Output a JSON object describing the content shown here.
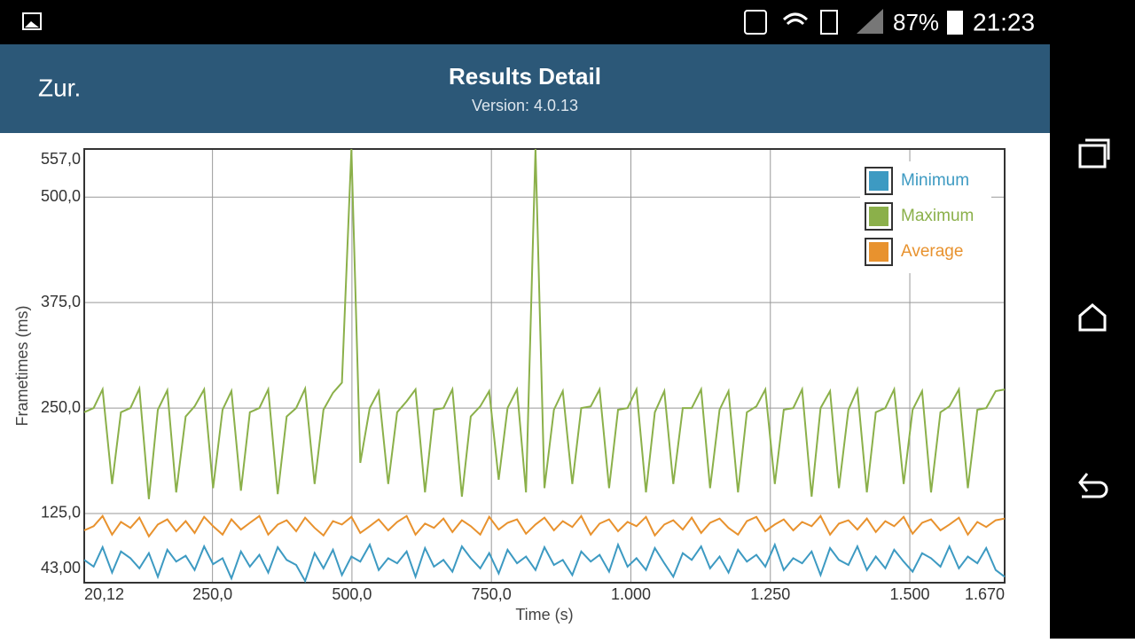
{
  "status_bar": {
    "battery": "87%",
    "time": "21:23"
  },
  "header": {
    "back": "Zur.",
    "title": "Results Detail",
    "subtitle": "Version: 4.0.13"
  },
  "chart_data": {
    "type": "line",
    "x_label": "Time (s)",
    "y_label": "Frametimes (ms)",
    "x": [
      20.12,
      37,
      53,
      70,
      86,
      103,
      119,
      136,
      152,
      169,
      185,
      202,
      218,
      235,
      251,
      268,
      284,
      301,
      317,
      334,
      350,
      367,
      383,
      400,
      416,
      433,
      449,
      466,
      482,
      499,
      515,
      532,
      548,
      565,
      581,
      598,
      614,
      631,
      647,
      664,
      680,
      697,
      713,
      730,
      746,
      763,
      779,
      796,
      812,
      829,
      845,
      862,
      878,
      895,
      911,
      928,
      944,
      961,
      977,
      994,
      1010,
      1027,
      1043,
      1060,
      1076,
      1093,
      1109,
      1126,
      1142,
      1159,
      1175,
      1192,
      1208,
      1225,
      1241,
      1258,
      1274,
      1291,
      1307,
      1324,
      1340,
      1357,
      1373,
      1390,
      1406,
      1423,
      1439,
      1456,
      1472,
      1489,
      1505,
      1522,
      1538,
      1555,
      1571,
      1588,
      1604,
      1621,
      1637,
      1654,
      1670
    ],
    "series": [
      {
        "name": "Minimum",
        "color": "#3d9ac2",
        "values": [
          70,
          62,
          85,
          55,
          80,
          72,
          60,
          78,
          50,
          82,
          68,
          75,
          58,
          86,
          65,
          72,
          48,
          80,
          62,
          76,
          55,
          85,
          70,
          64,
          45,
          78,
          60,
          82,
          52,
          74,
          68,
          88,
          58,
          72,
          66,
          80,
          50,
          84,
          62,
          70,
          56,
          86,
          72,
          60,
          78,
          54,
          82,
          66,
          74,
          58,
          85,
          64,
          70,
          52,
          80,
          68,
          76,
          56,
          88,
          62,
          72,
          58,
          84,
          66,
          50,
          78,
          70,
          86,
          60,
          74,
          55,
          82,
          68,
          76,
          62,
          88,
          58,
          72,
          66,
          80,
          52,
          84,
          70,
          64,
          86,
          58,
          74,
          60,
          82,
          68,
          56,
          78,
          72,
          62,
          86,
          60,
          74,
          66,
          84,
          58,
          50
        ]
      },
      {
        "name": "Maximum",
        "color": "#8bb04a",
        "values": [
          245,
          250,
          272,
          160,
          245,
          250,
          273,
          142,
          248,
          271,
          150,
          240,
          252,
          272,
          155,
          248,
          270,
          152,
          245,
          250,
          272,
          148,
          240,
          250,
          273,
          160,
          248,
          268,
          280,
          557,
          185,
          250,
          270,
          160,
          245,
          258,
          272,
          150,
          248,
          250,
          272,
          145,
          240,
          252,
          270,
          165,
          250,
          272,
          150,
          557,
          155,
          248,
          270,
          160,
          250,
          252,
          272,
          155,
          248,
          250,
          272,
          150,
          245,
          270,
          160,
          250,
          250,
          272,
          155,
          248,
          270,
          150,
          245,
          252,
          272,
          160,
          248,
          250,
          272,
          145,
          250,
          270,
          155,
          248,
          272,
          150,
          245,
          250,
          272,
          160,
          248,
          270,
          150,
          245,
          252,
          272,
          155,
          248,
          250,
          270,
          272
        ]
      },
      {
        "name": "Average",
        "color": "#e8922e",
        "values": [
          105,
          110,
          122,
          100,
          115,
          108,
          120,
          98,
          112,
          118,
          104,
          116,
          102,
          121,
          110,
          100,
          118,
          106,
          114,
          122,
          100,
          112,
          117,
          104,
          120,
          108,
          99,
          116,
          112,
          121,
          102,
          110,
          118,
          105,
          115,
          122,
          100,
          113,
          108,
          119,
          103,
          117,
          110,
          100,
          121,
          106,
          114,
          118,
          101,
          112,
          120,
          105,
          116,
          109,
          122,
          100,
          113,
          118,
          104,
          115,
          110,
          121,
          99,
          112,
          117,
          106,
          120,
          102,
          114,
          119,
          108,
          100,
          116,
          121,
          104,
          112,
          118,
          105,
          115,
          110,
          122,
          100,
          113,
          117,
          106,
          119,
          103,
          116,
          110,
          121,
          101,
          114,
          118,
          105,
          112,
          120,
          100,
          115,
          109,
          117,
          119
        ]
      }
    ],
    "xlim": [
      20.12,
      1670
    ],
    "ylim": [
      43,
      557
    ],
    "xticks": [
      {
        "value": 20.12,
        "label": "20,12"
      },
      {
        "value": 250,
        "label": "250,0"
      },
      {
        "value": 500,
        "label": "500,0"
      },
      {
        "value": 750,
        "label": "750,0"
      },
      {
        "value": 1000,
        "label": "1.000"
      },
      {
        "value": 1250,
        "label": "1.250"
      },
      {
        "value": 1500,
        "label": "1.500"
      },
      {
        "value": 1670,
        "label": "1.670"
      }
    ],
    "yticks": [
      {
        "value": 43,
        "label": "43,00"
      },
      {
        "value": 125,
        "label": "125,0"
      },
      {
        "value": 250,
        "label": "250,0"
      },
      {
        "value": 375,
        "label": "375,0"
      },
      {
        "value": 500,
        "label": "500,0"
      },
      {
        "value": 557,
        "label": "557,0"
      }
    ],
    "grid": true,
    "legend": "top-right"
  }
}
